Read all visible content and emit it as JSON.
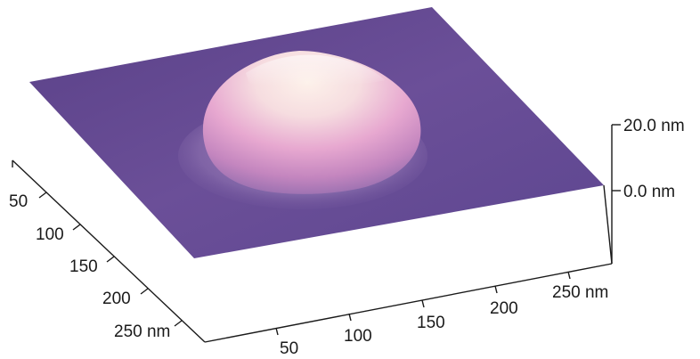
{
  "figure": {
    "type": "afm-3d-topography",
    "surface_color": "#6b4f98",
    "peak_color": "#fbe9ea",
    "z_axis": {
      "ticks": [
        {
          "value": 20.0,
          "label": "20.0 nm"
        },
        {
          "value": 0.0,
          "label": "0.0 nm"
        }
      ]
    },
    "left_axis": {
      "ticks": [
        "50",
        "100",
        "150",
        "200",
        "250 nm"
      ]
    },
    "bottom_axis": {
      "ticks": [
        "50",
        "100",
        "150",
        "200",
        "250 nm"
      ]
    }
  }
}
